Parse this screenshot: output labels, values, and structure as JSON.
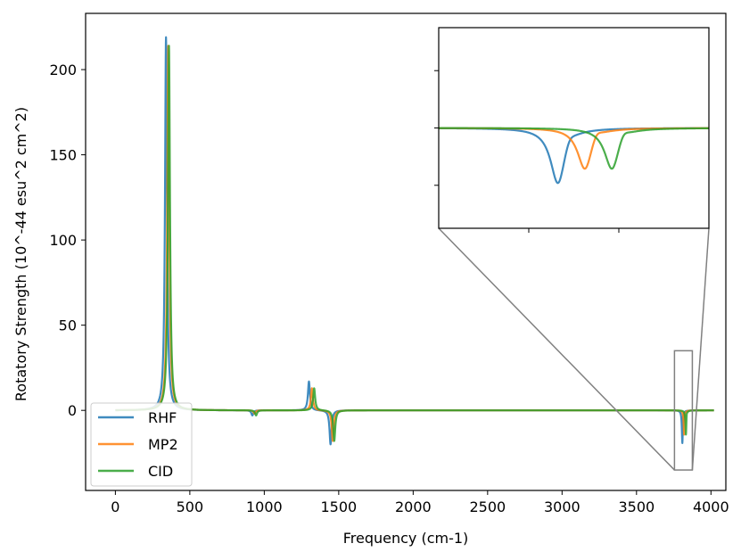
{
  "chart_data": {
    "type": "line",
    "title": "",
    "xlabel": "Frequency (cm-1)",
    "ylabel": "Rotatory Strength (10^-44 esu^2 cm^2)",
    "xlim": [
      -200,
      4100
    ],
    "ylim": [
      -47,
      233
    ],
    "xticks": [
      0,
      500,
      1000,
      1500,
      2000,
      2500,
      3000,
      3500,
      4000
    ],
    "yticks": [
      0,
      50,
      100,
      150,
      200
    ],
    "grid": false,
    "legend_position": "lower-left",
    "series": [
      {
        "name": "RHF",
        "color": "#1f77b4",
        "peaks": [
          {
            "x": 340,
            "y": 219,
            "width": 8
          },
          {
            "x": 920,
            "y": -3,
            "width": 8
          },
          {
            "x": 1300,
            "y": 17,
            "width": 8
          },
          {
            "x": 1445,
            "y": -20,
            "width": 8
          },
          {
            "x": 3808,
            "y": -20,
            "width": 4
          },
          {
            "x": 3813,
            "y": 3,
            "width": 3
          }
        ]
      },
      {
        "name": "MP2",
        "color": "#ff7f0e",
        "peaks": [
          {
            "x": 355,
            "y": 214,
            "width": 8
          },
          {
            "x": 935,
            "y": -2,
            "width": 8
          },
          {
            "x": 1320,
            "y": 13,
            "width": 8
          },
          {
            "x": 1460,
            "y": -18,
            "width": 8
          },
          {
            "x": 3820,
            "y": -15,
            "width": 4
          },
          {
            "x": 3825,
            "y": 3,
            "width": 3
          }
        ]
      },
      {
        "name": "CID",
        "color": "#2ca02c",
        "peaks": [
          {
            "x": 360,
            "y": 214,
            "width": 8
          },
          {
            "x": 945,
            "y": -3,
            "width": 8
          },
          {
            "x": 1335,
            "y": 13,
            "width": 8
          },
          {
            "x": 1470,
            "y": -18,
            "width": 8
          },
          {
            "x": 3832,
            "y": -15,
            "width": 4
          },
          {
            "x": 3837,
            "y": 3,
            "width": 3
          }
        ]
      }
    ],
    "inset": {
      "xlim": [
        3755,
        3875
      ],
      "ylim": [
        -35,
        35
      ],
      "xticks": [
        3795,
        3835
      ],
      "yticks": [
        -20,
        0,
        20
      ]
    }
  }
}
